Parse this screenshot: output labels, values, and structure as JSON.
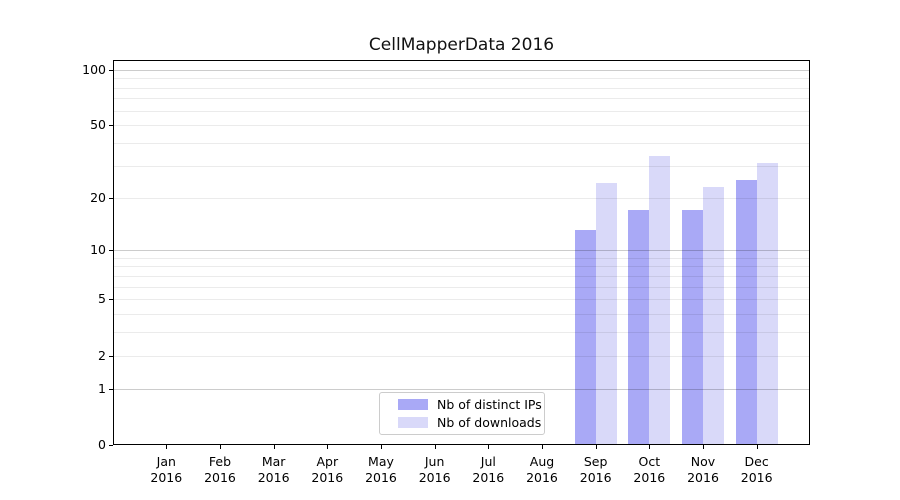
{
  "chart_data": {
    "type": "bar",
    "title": "CellMapperData 2016",
    "categories": [
      "Jan",
      "Feb",
      "Mar",
      "Apr",
      "May",
      "Jun",
      "Jul",
      "Aug",
      "Sep",
      "Oct",
      "Nov",
      "Dec"
    ],
    "year_label": "2016",
    "series": [
      {
        "name": "Nb of distinct IPs",
        "color": "#a9a9f6",
        "values": [
          0,
          0,
          0,
          0,
          0,
          0,
          0,
          0,
          13,
          17,
          17,
          25
        ]
      },
      {
        "name": "Nb of downloads",
        "color": "#d9d9f9",
        "values": [
          0,
          0,
          0,
          0,
          0,
          0,
          0,
          0,
          24,
          34,
          23,
          31
        ]
      }
    ],
    "xlabel": "",
    "ylabel": "",
    "yscale": "log1p",
    "ylim": [
      0,
      113
    ],
    "yticks": [
      0,
      1,
      2,
      5,
      10,
      20,
      50,
      100
    ],
    "grid": {
      "major": [
        1,
        10,
        100
      ],
      "minor": [
        2,
        3,
        4,
        5,
        6,
        7,
        8,
        9,
        20,
        30,
        40,
        50,
        60,
        70,
        80,
        90
      ],
      "major_color": "rgba(0,0,0,0.20)",
      "minor_color": "rgba(0,0,0,0.08)"
    },
    "legend": {
      "position": "lower center",
      "entries": [
        "Nb of distinct IPs",
        "Nb of downloads"
      ]
    },
    "spine_color": "#000000",
    "background_color": "#ffffff"
  }
}
